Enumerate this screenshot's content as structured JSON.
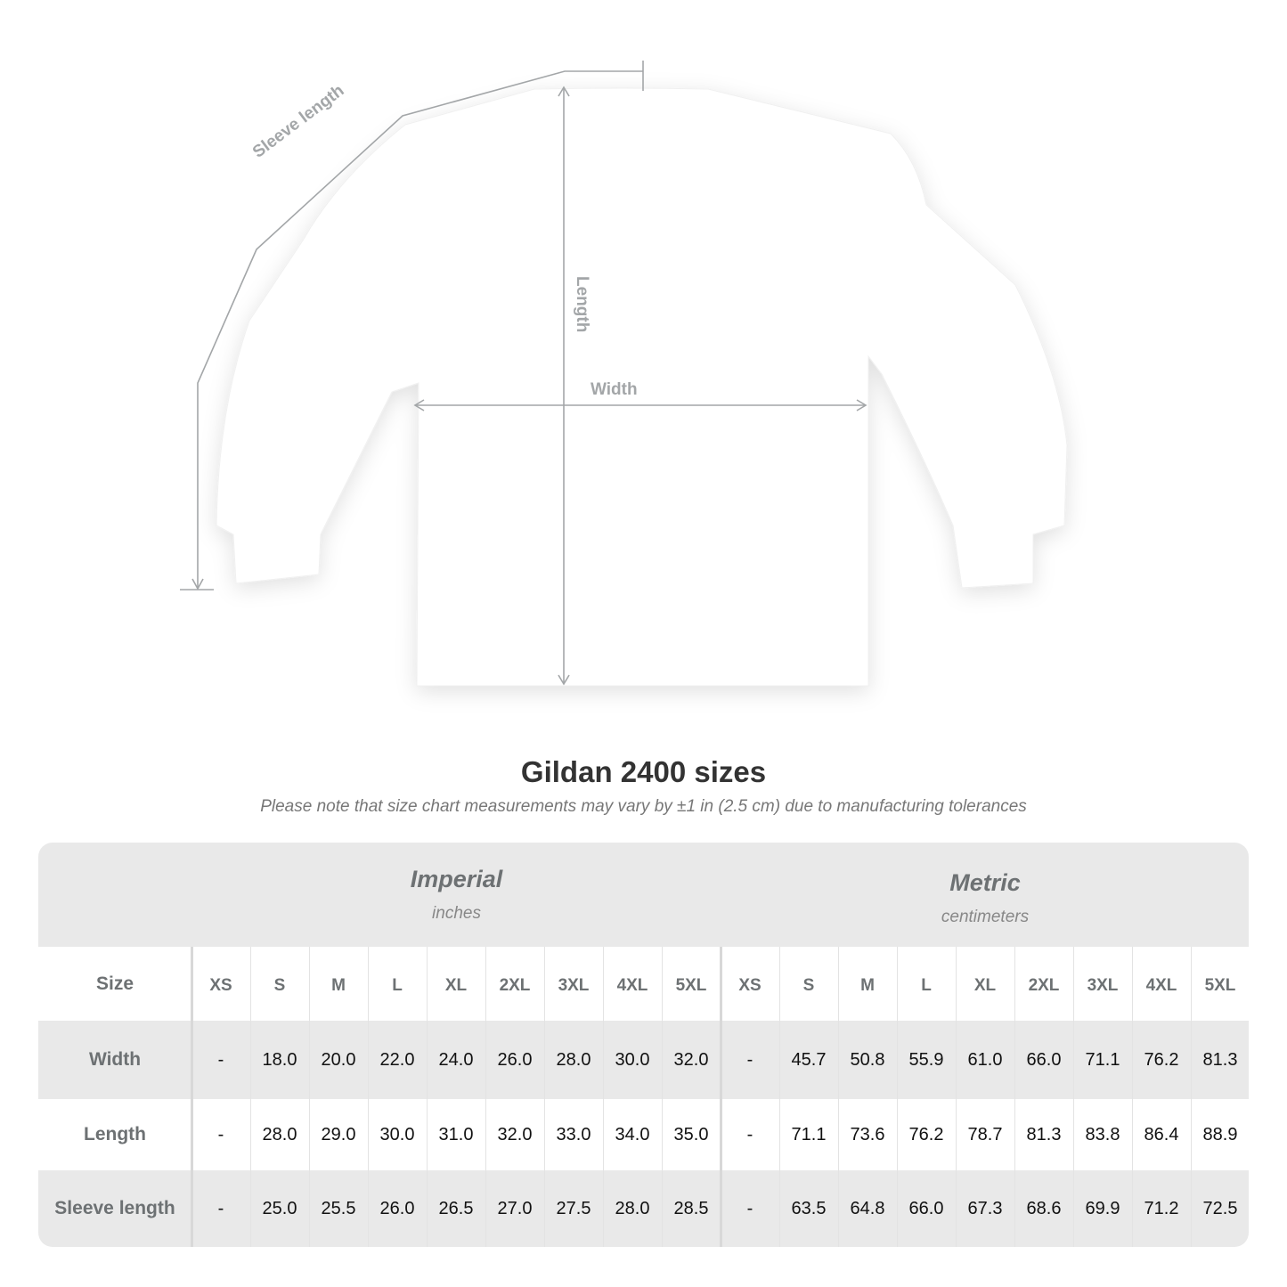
{
  "diagram": {
    "labels": {
      "sleeve": "Sleeve length",
      "length": "Length",
      "width": "Width"
    },
    "line_color": "#a3a6a8"
  },
  "title": "Gildan 2400 sizes",
  "note": "Please note that size chart measurements may vary by ±1 in (2.5 cm) due to manufacturing tolerances",
  "table": {
    "imperial": {
      "name": "Imperial",
      "unit": "inches"
    },
    "metric": {
      "name": "Metric",
      "unit": "centimeters"
    },
    "size_label": "Size",
    "sizes": [
      "XS",
      "S",
      "M",
      "L",
      "XL",
      "2XL",
      "3XL",
      "4XL",
      "5XL"
    ],
    "rows": [
      {
        "label": "Width",
        "imperial": [
          "-",
          "18.0",
          "20.0",
          "22.0",
          "24.0",
          "26.0",
          "28.0",
          "30.0",
          "32.0"
        ],
        "metric": [
          "-",
          "45.7",
          "50.8",
          "55.9",
          "61.0",
          "66.0",
          "71.1",
          "76.2",
          "81.3"
        ]
      },
      {
        "label": "Length",
        "imperial": [
          "-",
          "28.0",
          "29.0",
          "30.0",
          "31.0",
          "32.0",
          "33.0",
          "34.0",
          "35.0"
        ],
        "metric": [
          "-",
          "71.1",
          "73.6",
          "76.2",
          "78.7",
          "81.3",
          "83.8",
          "86.4",
          "88.9"
        ]
      },
      {
        "label": "Sleeve length",
        "imperial": [
          "-",
          "25.0",
          "25.5",
          "26.0",
          "26.5",
          "27.0",
          "27.5",
          "28.0",
          "28.5"
        ],
        "metric": [
          "-",
          "63.5",
          "64.8",
          "66.0",
          "67.3",
          "68.6",
          "69.9",
          "71.2",
          "72.5"
        ]
      }
    ],
    "colors": {
      "band": "#e9e9e9",
      "header_text": "#6d7173"
    }
  }
}
